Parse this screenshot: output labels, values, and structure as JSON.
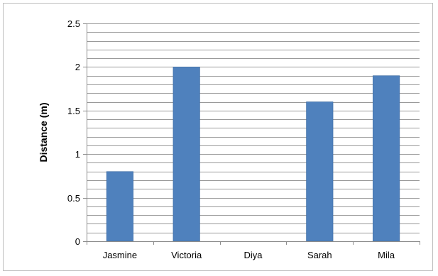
{
  "chart_data": {
    "type": "bar",
    "categories": [
      "Jasmine",
      "Victoria",
      "Diya",
      "Sarah",
      "Mila"
    ],
    "values": [
      0.8,
      2.0,
      0,
      1.6,
      1.9
    ],
    "title": "",
    "xlabel": "",
    "ylabel": "Distance (m)",
    "ylim": [
      0,
      2.5
    ],
    "y_major_ticks": [
      0,
      0.5,
      1,
      1.5,
      2,
      2.5
    ],
    "y_tick_labels": [
      "0",
      "0.5",
      "1",
      "1.5",
      "2",
      "2.5"
    ],
    "y_minor_step": 0.1,
    "grid": true,
    "legend": "none",
    "bar_color": "#4f81bd",
    "bar_edge_color": "#3b6aa0",
    "grid_color": "#9a9a9a",
    "axis_color": "#8c8c8c"
  }
}
